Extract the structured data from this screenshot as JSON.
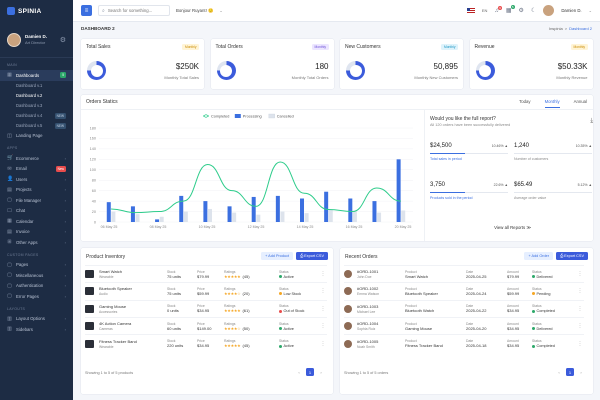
{
  "brand": {
    "name": "SPINIA"
  },
  "profile": {
    "name": "Damien D.",
    "role": "Art Director"
  },
  "sidebar": {
    "sections": {
      "main": "MAIN",
      "apps": "APPS",
      "custom_pages": "CUSTOM PAGES",
      "layouts": "LAYOUTS"
    },
    "dashboards": {
      "label": "Dashboards",
      "badge": "5",
      "subitems": [
        {
          "label": "Dashboard v.1",
          "badge": ""
        },
        {
          "label": "Dashboard v.2",
          "badge": ""
        },
        {
          "label": "Dashboard v.3",
          "badge": ""
        },
        {
          "label": "Dashboard v.4",
          "badge": "NEW"
        },
        {
          "label": "Dashboard v.5",
          "badge": "NEW"
        }
      ]
    },
    "landing": "Landing Page",
    "apps": [
      {
        "label": "Ecommerce",
        "badge": ""
      },
      {
        "label": "Email",
        "badge": "New"
      },
      {
        "label": "Users",
        "badge": ""
      },
      {
        "label": "Projects",
        "badge": ""
      },
      {
        "label": "File Manager",
        "badge": ""
      },
      {
        "label": "Chat",
        "badge": ""
      },
      {
        "label": "Calendar",
        "badge": ""
      },
      {
        "label": "Invoice",
        "badge": ""
      },
      {
        "label": "Other Apps",
        "badge": ""
      }
    ],
    "custom": [
      "Pages",
      "Miscellaneous",
      "Authentication",
      "Error Pages"
    ],
    "layouts": [
      "Layout Options",
      "Sidebars"
    ]
  },
  "topbar": {
    "search_placeholder": "Search for something...",
    "greeting": "Bonjour Ruyant! 🙂",
    "language": "EN",
    "notif_count": "6",
    "msg_count": "5",
    "username": "Damien D."
  },
  "breadcrumb": {
    "title": "DASHBOARD 2",
    "items": [
      "Inspinia",
      ">",
      "Dashboard 2"
    ]
  },
  "stats": [
    {
      "label": "Total Sales",
      "tag": "Monthly",
      "value": "$250K",
      "sub": "Monthly Total Sales",
      "tag_bg": "#fff4d6",
      "tag_fg": "#c98a00",
      "ring": "#3b5bdb"
    },
    {
      "label": "Total Orders",
      "tag": "Monthly",
      "value": "180",
      "sub": "Monthly Total Orders",
      "tag_bg": "#ece6ff",
      "tag_fg": "#6b4fd8",
      "ring": "#3b5bdb"
    },
    {
      "label": "New Customers",
      "tag": "Monthly",
      "value": "50,895",
      "sub": "Monthly New Customers",
      "tag_bg": "#dff3fb",
      "tag_fg": "#1a95c4",
      "ring": "#3b5bdb"
    },
    {
      "label": "Revenue",
      "tag": "Monthly",
      "value": "$50.33K",
      "sub": "Monthly Revenue",
      "tag_bg": "#fff4d6",
      "tag_fg": "#c98a00",
      "ring": "#3b5bdb"
    }
  ],
  "orders_stats": {
    "title": "Orders Statics",
    "tabs": [
      "Today",
      "Monthly",
      "Annual"
    ],
    "active_tab": "Monthly"
  },
  "chart_data": {
    "type": "bar",
    "title": "",
    "series": [
      {
        "name": "Completed",
        "kind": "line",
        "color": "#2ecc8b",
        "values": [
          25,
          18,
          20,
          40,
          110,
          60,
          30,
          115,
          55,
          24,
          20,
          65,
          40
        ]
      },
      {
        "name": "Processing",
        "kind": "bar",
        "color": "#3b6fe0",
        "values": [
          38,
          30,
          5,
          50,
          40,
          30,
          48,
          50,
          45,
          58,
          45,
          40,
          120
        ]
      },
      {
        "name": "Cancelled",
        "kind": "bar",
        "color": "#dde3ec",
        "values": [
          20,
          15,
          10,
          20,
          25,
          18,
          14,
          20,
          17,
          23,
          21,
          18,
          22
        ]
      }
    ],
    "x_tick_labels": [
      "06 May 25",
      "08 May 25",
      "10 May 25",
      "12 May 25",
      "14 May 25",
      "16 May 25",
      "20 May 25"
    ],
    "y_ticks": [
      0,
      20,
      40,
      60,
      80,
      100,
      120,
      140,
      160,
      180
    ],
    "ylim": [
      0,
      180
    ],
    "legend_position": "top-center"
  },
  "report": {
    "question": "Would you like the full report?",
    "subtitle": "All 120 orders have been successfully delivered",
    "metrics": [
      {
        "value": "$24,500",
        "pct": "10.46% ▲",
        "label": "Total sales in period",
        "fill": 0.45
      },
      {
        "value": "1,240",
        "pct": "10.35% ▲",
        "label": "Number of customers",
        "fill": 0.0
      },
      {
        "value": "3,750",
        "pct": "22.6% ▲",
        "label": "Products sold in the period",
        "fill": 0.45
      },
      {
        "value": "$65.49",
        "pct": "5.12% ▲",
        "label": "Average order value",
        "fill": 0.0
      }
    ],
    "view_all": "View all Reports ≫"
  },
  "inventory": {
    "title": "Product Inventory",
    "add": "+ Add Product",
    "export": "⎙ Export CSV",
    "headers": {
      "stock": "Stock",
      "price": "Price",
      "ratings": "Ratings",
      "status": "Status"
    },
    "rows": [
      {
        "name": "Smart Watch",
        "cat": "Wearable",
        "stock": "75 units",
        "price": "$79.99",
        "stars": "★★★★★",
        "rating": "(45)",
        "status": "Active",
        "color": "#2ca86a"
      },
      {
        "name": "Bluetooth Speaker",
        "cat": "Audio",
        "stock": "75 units",
        "price": "$59.99",
        "stars": "★★★★☆",
        "rating": "(20)",
        "status": "Low Stock",
        "color": "#f5a623"
      },
      {
        "name": "Gaming Mouse",
        "cat": "Accessories",
        "stock": "0 units",
        "price": "$34.95",
        "stars": "★★★★★",
        "rating": "(61)",
        "status": "Out of Stock",
        "color": "#e84c4c"
      },
      {
        "name": "4K Action Camera",
        "cat": "Cameras",
        "stock": "60 units",
        "price": "$149.00",
        "stars": "★★★★☆",
        "rating": "(50)",
        "status": "Active",
        "color": "#2ca86a"
      },
      {
        "name": "Fitness Tracker Band",
        "cat": "Wearable",
        "stock": "220 units",
        "price": "$34.95",
        "stars": "★★★★★",
        "rating": "(45)",
        "status": "Active",
        "color": "#2ca86a"
      }
    ],
    "footer": "Showing 1 to 5 of 5 products",
    "page": "1"
  },
  "orders": {
    "title": "Recent Orders",
    "add": "+ Add Order",
    "export": "⎙ Export CSV",
    "headers": {
      "product": "Product",
      "date": "Date",
      "amount": "Amount",
      "status": "Status"
    },
    "rows": [
      {
        "id": "#ORD-1001",
        "name": "John Doe",
        "product": "Smart Watch",
        "date": "2025-04-25",
        "amount": "$79.99",
        "status": "Delivered",
        "color": "#2ca86a"
      },
      {
        "id": "#ORD-1002",
        "name": "Emma Watson",
        "product": "Bluetooth Speaker",
        "date": "2025-04-24",
        "amount": "$59.99",
        "status": "Pending",
        "color": "#f5a623"
      },
      {
        "id": "#ORD-1003",
        "name": "Michael Lee",
        "product": "Bluetooth Watch",
        "date": "2025-04-22",
        "amount": "$34.95",
        "status": "Completed",
        "color": "#2ca86a"
      },
      {
        "id": "#ORD-1004",
        "name": "Sophia Ruiz",
        "product": "Gaming Mouse",
        "date": "2025-04-20",
        "amount": "$34.95",
        "status": "Delivered",
        "color": "#2ca86a"
      },
      {
        "id": "#ORD-1005",
        "name": "Noah Smith",
        "product": "Fitness Tracker Band",
        "date": "2025-04-18",
        "amount": "$34.95",
        "status": "Completed",
        "color": "#2ca86a"
      }
    ],
    "footer": "Showing 1 to 5 of 5 orders",
    "page": "1"
  }
}
